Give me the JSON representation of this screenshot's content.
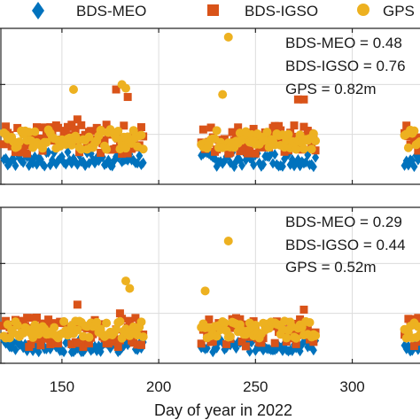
{
  "chart_data": {
    "type": "scatter",
    "legend": {
      "placement": "top",
      "entries": [
        {
          "name": "BDS-MEO",
          "color": "#0072BD",
          "marker": "diamond"
        },
        {
          "name": "BDS-IGSO",
          "color": "#D95319",
          "marker": "square"
        },
        {
          "name": "GPS",
          "color": "#EDB120",
          "marker": "circle"
        }
      ]
    },
    "xlabel": "Day of year in 2022",
    "xlim": [
      118,
      335
    ],
    "xticks": [
      150,
      200,
      250,
      300
    ],
    "tick_labels": [
      "150",
      "200",
      "250",
      "300"
    ],
    "grid": true,
    "day_ranges": [
      [
        120,
        192
      ],
      [
        222,
        281
      ],
      [
        327,
        335
      ]
    ],
    "panels": [
      {
        "id": "top",
        "ylim": [
          0,
          1.25
        ],
        "ygrid": [
          0.4,
          0.8
        ],
        "annotation_lines": [
          "BDS-MEO = 0.48",
          "BDS-IGSO = 0.76",
          "GPS = 0.82m"
        ],
        "series": {
          "BDS-MEO": {
            "base": 0.2,
            "jitter": 0.06
          },
          "BDS-IGSO": {
            "base": 0.36,
            "jitter": 0.12
          },
          "GPS": {
            "base": 0.36,
            "jitter": 0.08
          }
        },
        "outliers": {
          "GPS": [
            [
              156,
              0.76
            ],
            [
              181,
              0.8
            ],
            [
              183,
              0.77
            ],
            [
              233,
              0.72
            ],
            [
              236,
              1.18
            ]
          ],
          "BDS-IGSO": [
            [
              158,
              0.52
            ],
            [
              178,
              0.76
            ],
            [
              184,
              0.7
            ],
            [
              272,
              0.68
            ],
            [
              275,
              0.68
            ]
          ]
        }
      },
      {
        "id": "bottom",
        "ylim": [
          0,
          1.25
        ],
        "ygrid": [
          0.4,
          0.8
        ],
        "annotation_lines": [
          "BDS-MEO = 0.29",
          "BDS-IGSO = 0.44",
          "GPS = 0.52m"
        ],
        "series": {
          "BDS-MEO": {
            "base": 0.14,
            "jitter": 0.05
          },
          "BDS-IGSO": {
            "base": 0.25,
            "jitter": 0.12
          },
          "GPS": {
            "base": 0.27,
            "jitter": 0.07
          }
        },
        "outliers": {
          "GPS": [
            [
              183,
              0.66
            ],
            [
              185,
              0.6
            ],
            [
              224,
              0.58
            ],
            [
              236,
              0.98
            ]
          ],
          "BDS-IGSO": [
            [
              158,
              0.47
            ],
            [
              180,
              0.4
            ],
            [
              275,
              0.43
            ]
          ]
        }
      }
    ]
  }
}
